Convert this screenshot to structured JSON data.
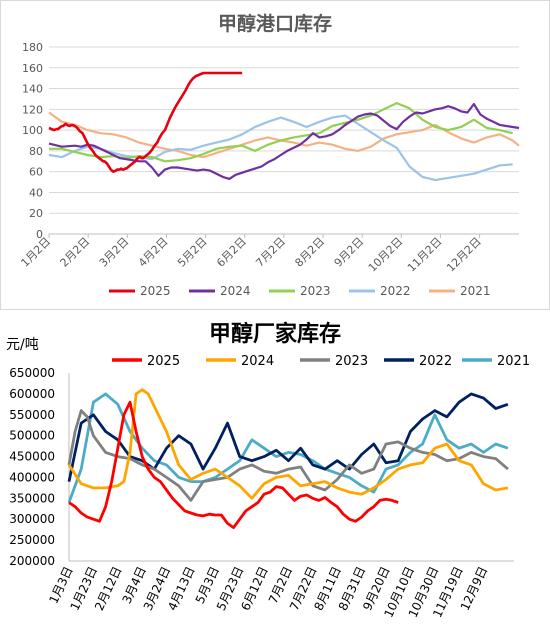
{
  "chart_data": [
    {
      "type": "line",
      "title": "甲醇港口库存",
      "ylim": [
        0,
        180
      ],
      "yticks": [
        0,
        20,
        40,
        60,
        80,
        100,
        120,
        140,
        160,
        180
      ],
      "x_tick_labels": [
        "1月2日",
        "2月2日",
        "3月2日",
        "4月2日",
        "5月2日",
        "6月2日",
        "7月2日",
        "8月2日",
        "9月2日",
        "10月2日",
        "11月2日",
        "12月2日"
      ],
      "grid": true,
      "legend": "bottom",
      "series": [
        {
          "name": "2025",
          "color": "#e60012",
          "x": [
            0,
            2,
            4,
            6,
            7,
            8,
            9,
            10,
            11,
            12,
            13,
            14,
            16,
            18,
            20,
            22,
            24,
            26,
            28,
            30,
            32,
            34,
            35,
            36,
            37,
            38,
            39,
            40,
            41,
            42,
            43,
            44,
            45,
            46,
            48,
            50,
            52,
            53,
            54,
            55,
            56,
            57,
            58,
            59,
            60,
            61,
            62,
            63,
            64,
            65,
            66,
            67,
            68,
            69,
            70,
            71,
            72,
            73,
            74,
            75,
            76,
            78,
            80,
            82,
            84,
            86,
            88,
            90,
            92,
            94,
            96,
            98,
            100,
            102,
            104,
            106,
            108,
            110,
            112,
            114,
            116,
            118,
            120,
            122,
            124,
            126,
            128,
            130,
            132,
            134,
            136,
            138,
            140,
            142,
            144,
            146,
            148,
            150
          ],
          "y": [
            102,
            101,
            100,
            101,
            101,
            102,
            103,
            104,
            104,
            105,
            106,
            105,
            104,
            105,
            104,
            102,
            99,
            97,
            92,
            87,
            83,
            80,
            78,
            76,
            75,
            74,
            73,
            72,
            71,
            70,
            70,
            69,
            68,
            66,
            62,
            60,
            61,
            62,
            62,
            62,
            63,
            62,
            62,
            63,
            63,
            64,
            65,
            66,
            67,
            68,
            69,
            70,
            72,
            73,
            74,
            74,
            73,
            73,
            74,
            75,
            76,
            78,
            81,
            85,
            88,
            93,
            97,
            100,
            106,
            112,
            117,
            122,
            126,
            130,
            134,
            138,
            143,
            147,
            150,
            152,
            153,
            154,
            155,
            155,
            155,
            155,
            155,
            155,
            155,
            155,
            155,
            155,
            155,
            155,
            155,
            155,
            155,
            155
          ]
        },
        {
          "name": "2024",
          "color": "#7030a0",
          "x": [
            0,
            10,
            20,
            25,
            30,
            35,
            40,
            45,
            50,
            55,
            60,
            65,
            70,
            75,
            80,
            85,
            90,
            95,
            100,
            105,
            110,
            115,
            120,
            125,
            130,
            135,
            140,
            145,
            150,
            155,
            160,
            165,
            170,
            175,
            180,
            185,
            190,
            195,
            200,
            205,
            210,
            215,
            220,
            225,
            230,
            235,
            240,
            245,
            250,
            255,
            260,
            265,
            270,
            275,
            280,
            285,
            290,
            295,
            300,
            305,
            310,
            315,
            320,
            325,
            330,
            335,
            340,
            345,
            350,
            355,
            360,
            365
          ],
          "y": [
            87,
            84,
            85,
            84,
            86,
            85,
            82,
            79,
            76,
            73,
            72,
            71,
            70,
            70,
            64,
            56,
            62,
            64,
            64,
            63,
            62,
            61,
            62,
            61,
            58,
            55,
            53,
            57,
            59,
            61,
            63,
            65,
            69,
            72,
            76,
            80,
            83,
            86,
            91,
            97,
            93,
            94,
            96,
            100,
            105,
            109,
            113,
            115,
            116,
            114,
            109,
            104,
            101,
            108,
            113,
            117,
            116,
            118,
            120,
            121,
            123,
            121,
            118,
            117,
            125,
            115,
            111,
            108,
            105,
            104,
            103,
            102
          ]
        },
        {
          "name": "2023",
          "color": "#92d050",
          "x": [
            0,
            10,
            20,
            30,
            40,
            50,
            60,
            70,
            80,
            90,
            100,
            110,
            120,
            130,
            140,
            150,
            160,
            170,
            180,
            190,
            200,
            210,
            220,
            230,
            240,
            250,
            260,
            270,
            280,
            290,
            300,
            310,
            320,
            330,
            340,
            350,
            360
          ],
          "y": [
            82,
            82,
            79,
            76,
            74,
            75,
            73,
            75,
            74,
            70,
            71,
            73,
            77,
            82,
            84,
            85,
            80,
            86,
            90,
            93,
            95,
            97,
            104,
            107,
            110,
            114,
            120,
            126,
            121,
            110,
            103,
            100,
            103,
            110,
            102,
            100,
            97
          ]
        },
        {
          "name": "2022",
          "color": "#9dc3e6",
          "x": [
            0,
            10,
            20,
            30,
            40,
            50,
            60,
            70,
            80,
            90,
            100,
            110,
            120,
            130,
            140,
            150,
            160,
            170,
            180,
            190,
            200,
            210,
            220,
            230,
            240,
            250,
            260,
            270,
            280,
            290,
            300,
            310,
            320,
            330,
            340,
            350,
            360
          ],
          "y": [
            76,
            74,
            80,
            84,
            82,
            78,
            75,
            74,
            72,
            79,
            82,
            81,
            85,
            88,
            91,
            96,
            103,
            108,
            112,
            108,
            103,
            108,
            112,
            114,
            106,
            98,
            90,
            83,
            65,
            55,
            52,
            54,
            56,
            58,
            62,
            66,
            67
          ]
        },
        {
          "name": "2021",
          "color": "#f4b183",
          "x": [
            0,
            10,
            20,
            30,
            40,
            50,
            60,
            70,
            80,
            90,
            100,
            110,
            120,
            130,
            140,
            150,
            160,
            170,
            180,
            190,
            200,
            210,
            220,
            230,
            240,
            250,
            260,
            270,
            280,
            290,
            300,
            310,
            320,
            330,
            340,
            350,
            360,
            365
          ],
          "y": [
            117,
            108,
            105,
            100,
            97,
            96,
            93,
            88,
            85,
            82,
            80,
            76,
            74,
            78,
            82,
            86,
            90,
            93,
            90,
            88,
            85,
            88,
            86,
            82,
            80,
            84,
            92,
            96,
            98,
            100,
            105,
            98,
            92,
            88,
            93,
            96,
            90,
            85
          ]
        }
      ]
    },
    {
      "type": "line",
      "title": "甲醇厂家库存",
      "unit_label": "元/吨",
      "ylim": [
        200000,
        650000
      ],
      "yticks": [
        200000,
        250000,
        300000,
        350000,
        400000,
        450000,
        500000,
        550000,
        600000,
        650000
      ],
      "x_tick_labels": [
        "1月3日",
        "1月23日",
        "2月12日",
        "3月4日",
        "3月24日",
        "4月13日",
        "5月3日",
        "5月23日",
        "6月12日",
        "7月2日",
        "7月22日",
        "8月11日",
        "8月31日",
        "9月20日",
        "10月10日",
        "10月30日",
        "11月19日",
        "12月9日"
      ],
      "grid": false,
      "legend": "top",
      "series": [
        {
          "name": "2025",
          "color": "#ff0000",
          "x": [
            0,
            5,
            10,
            15,
            20,
            25,
            30,
            35,
            40,
            45,
            50,
            55,
            60,
            65,
            70,
            75,
            80,
            85,
            90,
            95,
            100,
            105,
            110,
            115,
            120,
            125,
            130,
            135,
            140,
            145,
            150,
            155,
            160,
            165,
            170,
            175,
            180,
            185,
            190,
            195,
            200,
            205,
            210,
            215,
            220,
            225,
            230,
            235,
            240,
            245,
            250,
            255,
            260,
            265,
            270
          ],
          "y": [
            340000,
            330000,
            315000,
            305000,
            300000,
            295000,
            330000,
            390000,
            470000,
            550000,
            580000,
            510000,
            450000,
            420000,
            400000,
            390000,
            370000,
            350000,
            335000,
            320000,
            315000,
            310000,
            308000,
            312000,
            310000,
            310000,
            290000,
            280000,
            300000,
            320000,
            330000,
            340000,
            360000,
            365000,
            378000,
            375000,
            360000,
            345000,
            355000,
            358000,
            350000,
            345000,
            352000,
            340000,
            330000,
            312000,
            300000,
            295000,
            305000,
            320000,
            330000,
            345000,
            348000,
            345000,
            340000
          ]
        },
        {
          "name": "2024",
          "color": "#ffa500",
          "x": [
            0,
            10,
            20,
            30,
            40,
            45,
            50,
            55,
            60,
            65,
            70,
            75,
            80,
            90,
            100,
            110,
            120,
            130,
            140,
            150,
            160,
            170,
            180,
            190,
            200,
            210,
            220,
            230,
            240,
            250,
            260,
            270,
            280,
            290,
            300,
            310,
            320,
            330,
            340,
            350,
            360
          ],
          "y": [
            430000,
            385000,
            375000,
            375000,
            380000,
            390000,
            460000,
            600000,
            610000,
            600000,
            570000,
            540000,
            510000,
            430000,
            395000,
            410000,
            420000,
            400000,
            380000,
            350000,
            385000,
            400000,
            405000,
            380000,
            385000,
            390000,
            375000,
            365000,
            360000,
            375000,
            395000,
            420000,
            430000,
            435000,
            470000,
            480000,
            440000,
            430000,
            385000,
            370000,
            375000
          ]
        },
        {
          "name": "2023",
          "color": "#808080",
          "x": [
            0,
            5,
            10,
            15,
            20,
            30,
            40,
            50,
            60,
            70,
            80,
            90,
            100,
            110,
            120,
            130,
            140,
            150,
            160,
            170,
            180,
            190,
            200,
            210,
            220,
            230,
            240,
            250,
            260,
            270,
            280,
            290,
            300,
            310,
            320,
            330,
            340,
            350,
            360
          ],
          "y": [
            430000,
            510000,
            560000,
            545000,
            500000,
            460000,
            450000,
            445000,
            430000,
            420000,
            400000,
            380000,
            345000,
            390000,
            395000,
            400000,
            420000,
            430000,
            415000,
            410000,
            420000,
            425000,
            380000,
            370000,
            395000,
            430000,
            410000,
            420000,
            480000,
            485000,
            470000,
            460000,
            455000,
            440000,
            445000,
            460000,
            450000,
            445000,
            420000
          ]
        },
        {
          "name": "2022",
          "color": "#002060",
          "x": [
            0,
            10,
            20,
            30,
            40,
            50,
            60,
            70,
            80,
            90,
            100,
            110,
            120,
            130,
            140,
            150,
            160,
            170,
            180,
            190,
            200,
            210,
            220,
            230,
            240,
            250,
            260,
            270,
            280,
            290,
            300,
            310,
            320,
            330,
            340,
            350,
            360
          ],
          "y": [
            390000,
            530000,
            550000,
            510000,
            490000,
            450000,
            440000,
            420000,
            470000,
            500000,
            480000,
            420000,
            470000,
            530000,
            450000,
            440000,
            450000,
            465000,
            440000,
            470000,
            430000,
            420000,
            440000,
            420000,
            455000,
            480000,
            435000,
            440000,
            510000,
            540000,
            560000,
            545000,
            580000,
            600000,
            590000,
            565000,
            575000
          ]
        },
        {
          "name": "2021",
          "color": "#4bacc6",
          "x": [
            0,
            10,
            20,
            30,
            40,
            50,
            60,
            70,
            80,
            90,
            100,
            110,
            120,
            130,
            140,
            150,
            160,
            170,
            180,
            190,
            200,
            210,
            220,
            230,
            240,
            250,
            260,
            270,
            280,
            290,
            300,
            310,
            320,
            330,
            340,
            350,
            360
          ],
          "y": [
            340000,
            420000,
            580000,
            600000,
            575000,
            510000,
            470000,
            440000,
            430000,
            400000,
            390000,
            390000,
            400000,
            420000,
            440000,
            490000,
            470000,
            450000,
            460000,
            455000,
            440000,
            420000,
            410000,
            400000,
            380000,
            365000,
            420000,
            430000,
            460000,
            480000,
            550000,
            490000,
            470000,
            480000,
            460000,
            480000,
            470000
          ]
        }
      ]
    }
  ]
}
